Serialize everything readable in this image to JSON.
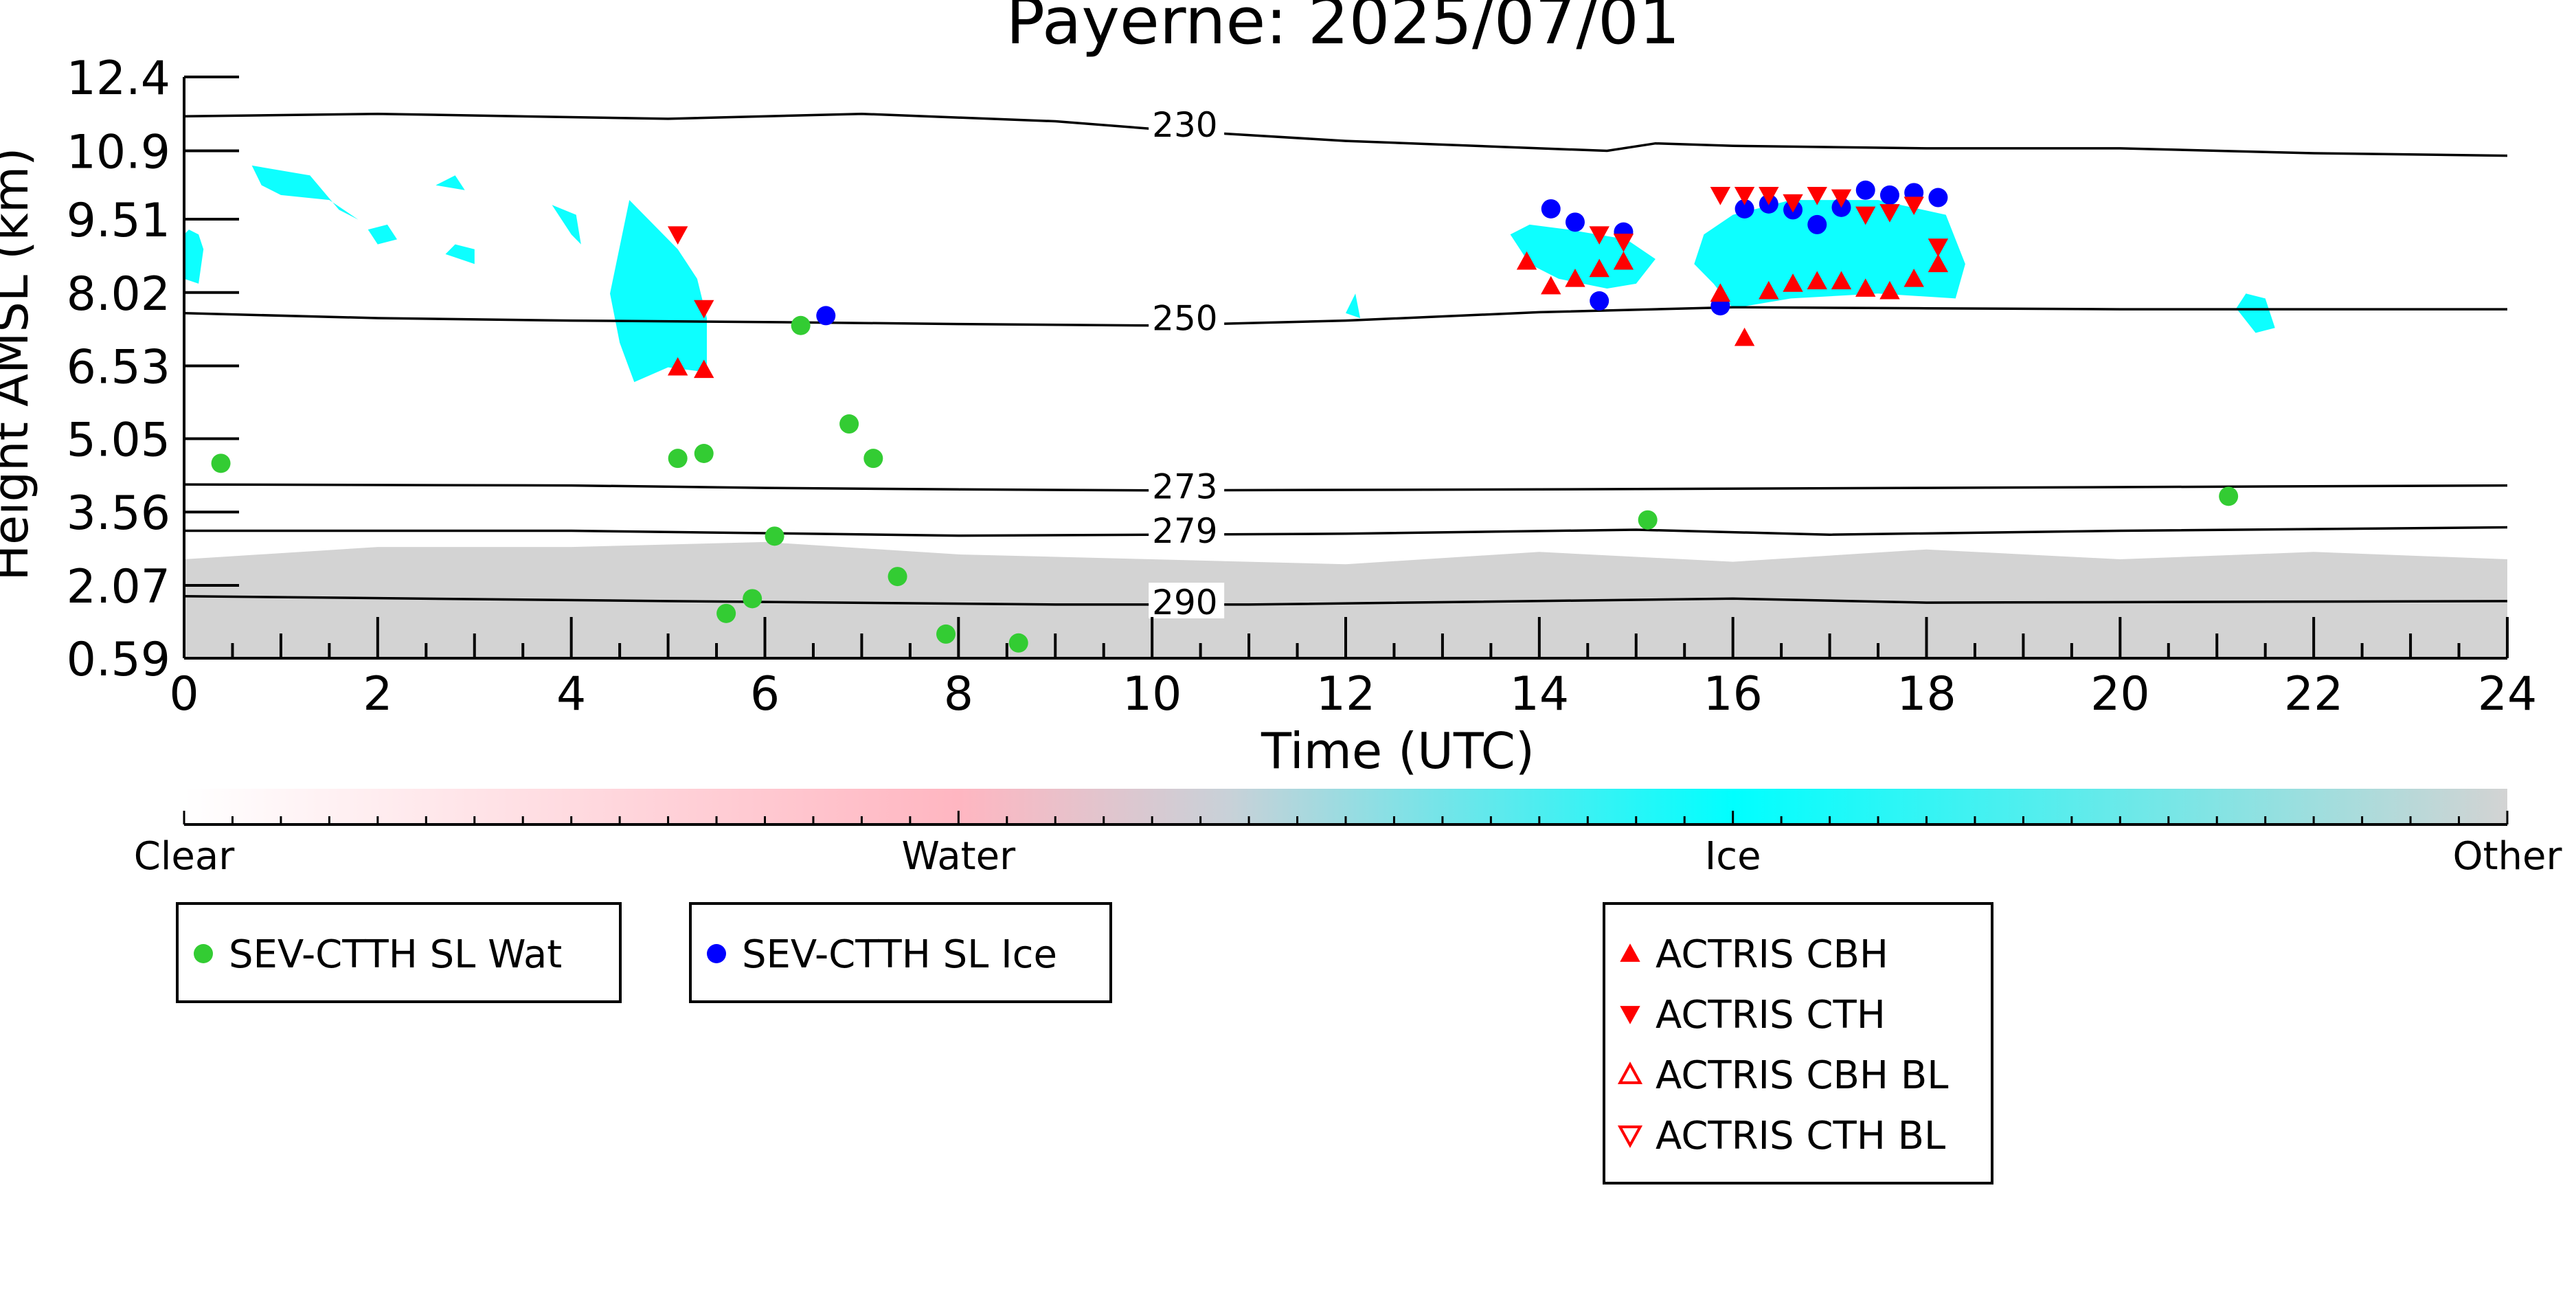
{
  "chart_data": {
    "type": "scatter",
    "title": "Payerne: 2025/07/01",
    "xlabel": "Time (UTC)",
    "ylabel": "Height AMSL (km)",
    "xlim": [
      0,
      24
    ],
    "ylim": [
      0.59,
      12.4
    ],
    "x_ticks": [
      0,
      2,
      4,
      6,
      8,
      10,
      12,
      14,
      16,
      18,
      20,
      22,
      24
    ],
    "y_ticks": [
      "0.59",
      "2.07",
      "3.56",
      "5.05",
      "6.53",
      "8.02",
      "9.51",
      "10.9",
      "12.4"
    ],
    "y_tick_values": [
      0.59,
      2.07,
      3.56,
      5.05,
      6.53,
      8.02,
      9.51,
      10.9,
      12.4
    ],
    "grid": false,
    "colors": {
      "clear": "#ffffff",
      "water": "#ffb6c1",
      "ice": "#00ffff",
      "other": "#d3d3d3",
      "wat_marker": "#33cc33",
      "ice_marker": "#0000ff",
      "actris": "#ff0000"
    },
    "colorbar": {
      "labels": [
        "Clear",
        "Water",
        "Ice",
        "Other"
      ]
    },
    "isotherms": [
      {
        "label": "230",
        "label_x": 10.0,
        "label_y": 11.35,
        "points": [
          [
            0,
            11.6
          ],
          [
            2,
            11.65
          ],
          [
            5,
            11.55
          ],
          [
            7,
            11.65
          ],
          [
            9,
            11.5
          ],
          [
            10.3,
            11.3
          ],
          [
            12,
            11.1
          ],
          [
            14,
            10.95
          ],
          [
            14.7,
            10.9
          ],
          [
            15.2,
            11.05
          ],
          [
            16,
            11.0
          ],
          [
            18,
            10.95
          ],
          [
            20,
            10.95
          ],
          [
            22,
            10.85
          ],
          [
            24,
            10.8
          ]
        ]
      },
      {
        "label": "250",
        "label_x": 10.0,
        "label_y": 7.42,
        "points": [
          [
            0,
            7.6
          ],
          [
            2,
            7.5
          ],
          [
            4,
            7.45
          ],
          [
            6,
            7.42
          ],
          [
            8,
            7.38
          ],
          [
            10,
            7.35
          ],
          [
            12,
            7.45
          ],
          [
            14,
            7.62
          ],
          [
            16,
            7.72
          ],
          [
            18,
            7.7
          ],
          [
            20,
            7.68
          ],
          [
            24,
            7.68
          ]
        ]
      },
      {
        "label": "273",
        "label_x": 10.0,
        "label_y": 4.0,
        "points": [
          [
            0,
            4.12
          ],
          [
            4,
            4.1
          ],
          [
            6,
            4.05
          ],
          [
            8,
            4.02
          ],
          [
            10,
            4.0
          ],
          [
            14,
            4.02
          ],
          [
            18,
            4.05
          ],
          [
            24,
            4.1
          ]
        ]
      },
      {
        "label": "279",
        "label_x": 10.0,
        "label_y": 3.1,
        "points": [
          [
            0,
            3.18
          ],
          [
            4,
            3.18
          ],
          [
            8,
            3.08
          ],
          [
            12,
            3.12
          ],
          [
            15,
            3.2
          ],
          [
            17,
            3.1
          ],
          [
            20,
            3.18
          ],
          [
            24,
            3.25
          ]
        ]
      },
      {
        "label": "290",
        "label_x": 10.0,
        "label_y": 1.65,
        "points": [
          [
            0,
            1.85
          ],
          [
            5,
            1.75
          ],
          [
            9,
            1.68
          ],
          [
            11,
            1.68
          ],
          [
            16,
            1.8
          ],
          [
            18,
            1.72
          ],
          [
            24,
            1.75
          ]
        ]
      }
    ],
    "cloud_regions": {
      "ice": [
        [
          [
            0,
            8.3
          ],
          [
            0.15,
            8.2
          ],
          [
            0.2,
            8.9
          ],
          [
            0.15,
            9.2
          ],
          [
            0.05,
            9.3
          ],
          [
            0,
            9.2
          ]
        ],
        [
          [
            0.7,
            10.6
          ],
          [
            1.3,
            10.4
          ],
          [
            1.6,
            9.7
          ],
          [
            1.8,
            9.5
          ],
          [
            1.5,
            9.9
          ],
          [
            1.0,
            10.0
          ],
          [
            0.8,
            10.2
          ]
        ],
        [
          [
            1.9,
            9.3
          ],
          [
            2.0,
            9.0
          ],
          [
            2.2,
            9.1
          ],
          [
            2.1,
            9.4
          ]
        ],
        [
          [
            2.6,
            10.2
          ],
          [
            2.9,
            10.1
          ],
          [
            2.8,
            10.4
          ]
        ],
        [
          [
            2.7,
            8.8
          ],
          [
            3.0,
            8.6
          ],
          [
            3.0,
            8.9
          ],
          [
            2.8,
            9.0
          ]
        ],
        [
          [
            3.8,
            9.8
          ],
          [
            4.0,
            9.2
          ],
          [
            4.1,
            9.0
          ],
          [
            4.05,
            9.6
          ]
        ],
        [
          [
            4.4,
            8.0
          ],
          [
            4.5,
            7.0
          ],
          [
            4.65,
            6.2
          ],
          [
            5.0,
            6.5
          ],
          [
            5.4,
            6.4
          ],
          [
            5.4,
            7.5
          ],
          [
            5.3,
            8.3
          ],
          [
            5.1,
            8.9
          ],
          [
            4.8,
            9.5
          ],
          [
            4.6,
            9.9
          ]
        ],
        [
          [
            12.0,
            7.6
          ],
          [
            12.15,
            7.5
          ],
          [
            12.1,
            8.0
          ]
        ],
        [
          [
            13.7,
            9.2
          ],
          [
            13.9,
            9.4
          ],
          [
            14.3,
            9.3
          ],
          [
            14.9,
            9.1
          ],
          [
            15.2,
            8.7
          ],
          [
            15.0,
            8.2
          ],
          [
            14.7,
            8.1
          ],
          [
            14.2,
            8.3
          ],
          [
            13.9,
            8.6
          ]
        ],
        [
          [
            15.6,
            8.6
          ],
          [
            15.7,
            9.2
          ],
          [
            16.0,
            9.6
          ],
          [
            16.6,
            9.9
          ],
          [
            17.5,
            9.9
          ],
          [
            18.2,
            9.6
          ],
          [
            18.4,
            8.6
          ],
          [
            18.3,
            7.9
          ],
          [
            17.5,
            8.0
          ],
          [
            16.6,
            7.9
          ],
          [
            16.0,
            7.7
          ],
          [
            15.8,
            8.2
          ]
        ],
        [
          [
            21.2,
            7.7
          ],
          [
            21.3,
            8.0
          ],
          [
            21.5,
            7.9
          ],
          [
            21.6,
            7.3
          ],
          [
            21.4,
            7.2
          ]
        ]
      ],
      "other": [
        [
          [
            0,
            0.59
          ],
          [
            24,
            0.59
          ],
          [
            24,
            2.6
          ],
          [
            22,
            2.75
          ],
          [
            20,
            2.6
          ],
          [
            18,
            2.8
          ],
          [
            16,
            2.55
          ],
          [
            14,
            2.75
          ],
          [
            12,
            2.5
          ],
          [
            10,
            2.6
          ],
          [
            8,
            2.7
          ],
          [
            6,
            2.95
          ],
          [
            4,
            2.85
          ],
          [
            2,
            2.85
          ],
          [
            0,
            2.6
          ]
        ]
      ]
    },
    "series": [
      {
        "name": "SEV-CTTH SL Wat",
        "marker": "circle",
        "color": "#33cc33",
        "points": [
          [
            0.38,
            4.55
          ],
          [
            5.1,
            4.65
          ],
          [
            5.37,
            4.75
          ],
          [
            5.6,
            1.5
          ],
          [
            5.87,
            1.8
          ],
          [
            6.1,
            3.07
          ],
          [
            6.37,
            7.35
          ],
          [
            6.87,
            5.35
          ],
          [
            7.12,
            4.65
          ],
          [
            7.37,
            2.25
          ],
          [
            7.87,
            1.08
          ],
          [
            8.62,
            0.9
          ],
          [
            15.12,
            3.4
          ],
          [
            21.12,
            3.88
          ]
        ]
      },
      {
        "name": "SEV-CTTH SL Ice",
        "marker": "circle",
        "color": "#0000ff",
        "points": [
          [
            6.63,
            7.55
          ],
          [
            14.12,
            9.72
          ],
          [
            14.37,
            9.45
          ],
          [
            14.62,
            7.85
          ],
          [
            14.87,
            9.25
          ],
          [
            15.87,
            7.75
          ],
          [
            16.12,
            9.72
          ],
          [
            16.37,
            9.82
          ],
          [
            16.62,
            9.7
          ],
          [
            16.87,
            9.4
          ],
          [
            17.12,
            9.75
          ],
          [
            17.37,
            10.1
          ],
          [
            17.62,
            10.0
          ],
          [
            17.87,
            10.05
          ],
          [
            18.12,
            9.95
          ]
        ]
      },
      {
        "name": "ACTRIS CBH",
        "marker": "triangle-up",
        "color": "#ff0000",
        "points": [
          [
            5.1,
            6.5
          ],
          [
            5.37,
            6.45
          ],
          [
            13.87,
            8.65
          ],
          [
            14.12,
            8.15
          ],
          [
            14.37,
            8.3
          ],
          [
            14.62,
            8.5
          ],
          [
            14.87,
            8.65
          ],
          [
            15.87,
            8.0
          ],
          [
            16.12,
            7.1
          ],
          [
            16.37,
            8.05
          ],
          [
            16.62,
            8.2
          ],
          [
            16.87,
            8.25
          ],
          [
            17.12,
            8.25
          ],
          [
            17.37,
            8.1
          ],
          [
            17.62,
            8.05
          ],
          [
            17.87,
            8.3
          ],
          [
            18.12,
            8.6
          ]
        ]
      },
      {
        "name": "ACTRIS CTH",
        "marker": "triangle-down",
        "color": "#ff0000",
        "points": [
          [
            5.1,
            9.2
          ],
          [
            5.37,
            7.7
          ],
          [
            14.62,
            9.2
          ],
          [
            14.87,
            9.05
          ],
          [
            15.87,
            10.0
          ],
          [
            16.12,
            10.0
          ],
          [
            16.37,
            10.0
          ],
          [
            16.62,
            9.85
          ],
          [
            16.87,
            10.0
          ],
          [
            17.12,
            9.95
          ],
          [
            17.37,
            9.6
          ],
          [
            17.62,
            9.65
          ],
          [
            17.87,
            9.8
          ],
          [
            18.12,
            8.95
          ]
        ]
      },
      {
        "name": "ACTRIS CBH BL",
        "marker": "triangle-up-open",
        "color": "#ff0000",
        "points": []
      },
      {
        "name": "ACTRIS CTH BL",
        "marker": "triangle-down-open",
        "color": "#ff0000",
        "points": []
      }
    ],
    "legends": [
      {
        "items": [
          "SEV-CTTH SL Wat"
        ]
      },
      {
        "items": [
          "SEV-CTTH SL Ice"
        ]
      },
      {
        "items": [
          "ACTRIS CBH",
          "ACTRIS CTH",
          "ACTRIS CBH BL",
          "ACTRIS CTH BL"
        ]
      }
    ]
  }
}
